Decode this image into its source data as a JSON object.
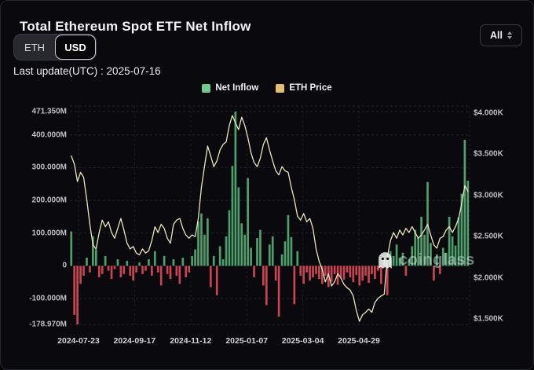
{
  "header": {
    "title": "Total Ethereum Spot ETF Net Inflow"
  },
  "controls": {
    "unit_toggle": {
      "eth_label": "ETH",
      "usd_label": "USD",
      "selected": "USD"
    },
    "range_select": {
      "value": "All"
    }
  },
  "last_update": "Last update(UTC) : 2025-07-16",
  "legend": {
    "items": [
      {
        "label": "Net Inflow",
        "color": "#74c78e"
      },
      {
        "label": "ETH Price",
        "color": "#e6bd72"
      }
    ]
  },
  "watermark": {
    "text": "coinglass",
    "icon": "ghost-icon"
  },
  "chart_data": {
    "type": "bar+line",
    "title": "Total Ethereum Spot ETF Net Inflow",
    "grid": "dashed",
    "legend_position": "top-center",
    "x_tick_labels": [
      "2024-07-23",
      "2024-09-17",
      "2024-11-12",
      "2025-01-07",
      "2025-03-04",
      "2025-04-29"
    ],
    "x_range_end": "2025-07-16",
    "left_axis": {
      "unit": "USD millions",
      "ticks": [
        "471.350M",
        "400.000M",
        "300.000M",
        "200.000M",
        "100.000M",
        "0",
        "-100.000M",
        "-178.970M"
      ],
      "values": [
        471.35,
        400,
        300,
        200,
        100,
        0,
        -100,
        -178.97
      ],
      "range": [
        -178.97,
        471.35
      ]
    },
    "right_axis": {
      "unit": "USD thousands",
      "ticks": [
        "$4.000K",
        "$3.500K",
        "$3.000K",
        "$2.500K",
        "$2.000K",
        "$1.500K"
      ],
      "values": [
        4.0,
        3.5,
        3.0,
        2.5,
        2.0,
        1.5
      ],
      "range": [
        1.5,
        4.0
      ]
    },
    "series": [
      {
        "name": "Net Inflow",
        "type": "bar",
        "color_positive": "#4f9f6d",
        "color_negative": "#c94450",
        "max_value": 471.35,
        "min_value": -178.97,
        "values": [
          105,
          -150,
          -178.97,
          -55,
          -30,
          25,
          -20,
          90,
          50,
          -35,
          -25,
          30,
          -15,
          -40,
          -10,
          20,
          -35,
          -25,
          15,
          -30,
          -45,
          -20,
          10,
          -25,
          -15,
          20,
          -30,
          45,
          -20,
          -60,
          30,
          -25,
          -40,
          20,
          -30,
          -55,
          25,
          -35,
          -20,
          30,
          50,
          135,
          160,
          95,
          145,
          -65,
          30,
          -90,
          60,
          20,
          90,
          170,
          305,
          471.35,
          240,
          130,
          95,
          268,
          55,
          -35,
          85,
          110,
          -60,
          -120,
          65,
          90,
          -45,
          -155,
          35,
          75,
          155,
          88,
          -117,
          45,
          -30,
          -55,
          -20,
          -45,
          -35,
          -25,
          -40,
          -55,
          -30,
          -65,
          -48,
          -25,
          -58,
          -35,
          -42,
          -20,
          -35,
          -50,
          -28,
          -60,
          -45,
          -30,
          -52,
          -25,
          -40,
          -15,
          -55,
          20,
          -90,
          45,
          30,
          65,
          25,
          40,
          -30,
          20,
          60,
          110,
          85,
          150,
          95,
          256,
          70,
          -45,
          35,
          -25,
          55,
          40,
          150,
          90,
          62,
          148,
          220,
          385,
          260
        ]
      },
      {
        "name": "ETH Price",
        "type": "line",
        "color": "#ece3bd",
        "values": [
          3.48,
          3.38,
          3.17,
          3.28,
          3.22,
          2.95,
          2.65,
          2.4,
          2.35,
          2.55,
          2.7,
          2.62,
          2.68,
          2.55,
          2.48,
          2.6,
          2.72,
          2.58,
          2.42,
          2.35,
          2.38,
          2.3,
          2.28,
          2.35,
          2.3,
          2.33,
          2.45,
          2.62,
          2.55,
          2.65,
          2.6,
          2.48,
          2.42,
          2.65,
          2.7,
          2.72,
          2.6,
          2.52,
          2.48,
          2.52,
          2.5,
          2.72,
          3.1,
          3.35,
          3.6,
          3.48,
          3.35,
          3.42,
          3.55,
          3.62,
          3.65,
          3.85,
          3.97,
          3.88,
          3.8,
          3.95,
          3.85,
          3.7,
          3.52,
          3.4,
          3.35,
          3.45,
          3.62,
          3.7,
          3.55,
          3.42,
          3.3,
          3.25,
          3.35,
          3.3,
          3.28,
          3.1,
          2.95,
          2.75,
          2.7,
          2.78,
          2.68,
          2.72,
          2.6,
          2.35,
          2.2,
          2.1,
          1.95,
          2.05,
          1.9,
          1.95,
          2.05,
          2.0,
          1.92,
          1.88,
          1.85,
          1.78,
          1.6,
          1.47,
          1.55,
          1.58,
          1.62,
          1.58,
          1.7,
          1.75,
          1.78,
          1.8,
          2.25,
          2.45,
          2.55,
          2.48,
          2.58,
          2.52,
          2.6,
          2.55,
          2.62,
          2.55,
          2.48,
          2.52,
          2.58,
          2.65,
          2.52,
          2.4,
          2.36,
          2.48,
          2.5,
          2.58,
          2.62,
          2.55,
          2.62,
          2.72,
          2.9,
          3.12,
          3.05
        ]
      }
    ]
  }
}
